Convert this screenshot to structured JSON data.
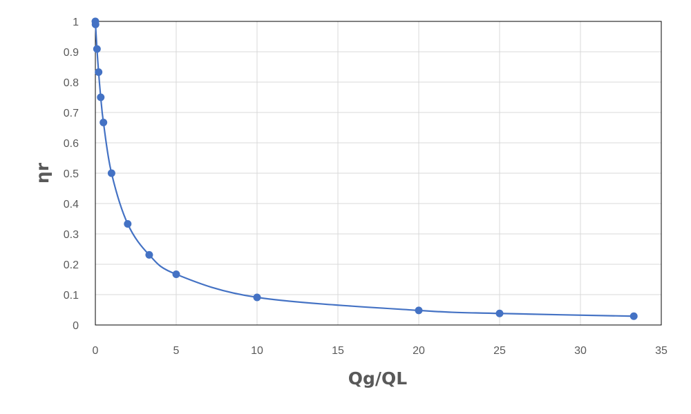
{
  "chart_data": {
    "type": "scatter",
    "title": "",
    "xlabel": "Qg/QL",
    "ylabel": "ηr",
    "xlim": [
      0,
      35
    ],
    "ylim": [
      0,
      1
    ],
    "x_ticks": [
      0,
      5,
      10,
      15,
      20,
      25,
      30,
      35
    ],
    "y_ticks": [
      0,
      0.1,
      0.2,
      0.3,
      0.4,
      0.5,
      0.6,
      0.7,
      0.8,
      0.9,
      1
    ],
    "grid": true,
    "legend": "none",
    "series": [
      {
        "color": "#4472c4",
        "marker": "circle",
        "smooth_line": true,
        "points": [
          {
            "x": 0,
            "y": 1
          },
          {
            "x": 0.01,
            "y": 0.99
          },
          {
            "x": 0.1,
            "y": 0.909
          },
          {
            "x": 0.2,
            "y": 0.833
          },
          {
            "x": 0.333,
            "y": 0.75
          },
          {
            "x": 0.5,
            "y": 0.667
          },
          {
            "x": 1,
            "y": 0.5
          },
          {
            "x": 2,
            "y": 0.333
          },
          {
            "x": 3.33,
            "y": 0.231
          },
          {
            "x": 5,
            "y": 0.167
          },
          {
            "x": 10,
            "y": 0.091
          },
          {
            "x": 20,
            "y": 0.048
          },
          {
            "x": 25,
            "y": 0.038
          },
          {
            "x": 33.3,
            "y": 0.029
          }
        ]
      }
    ]
  }
}
